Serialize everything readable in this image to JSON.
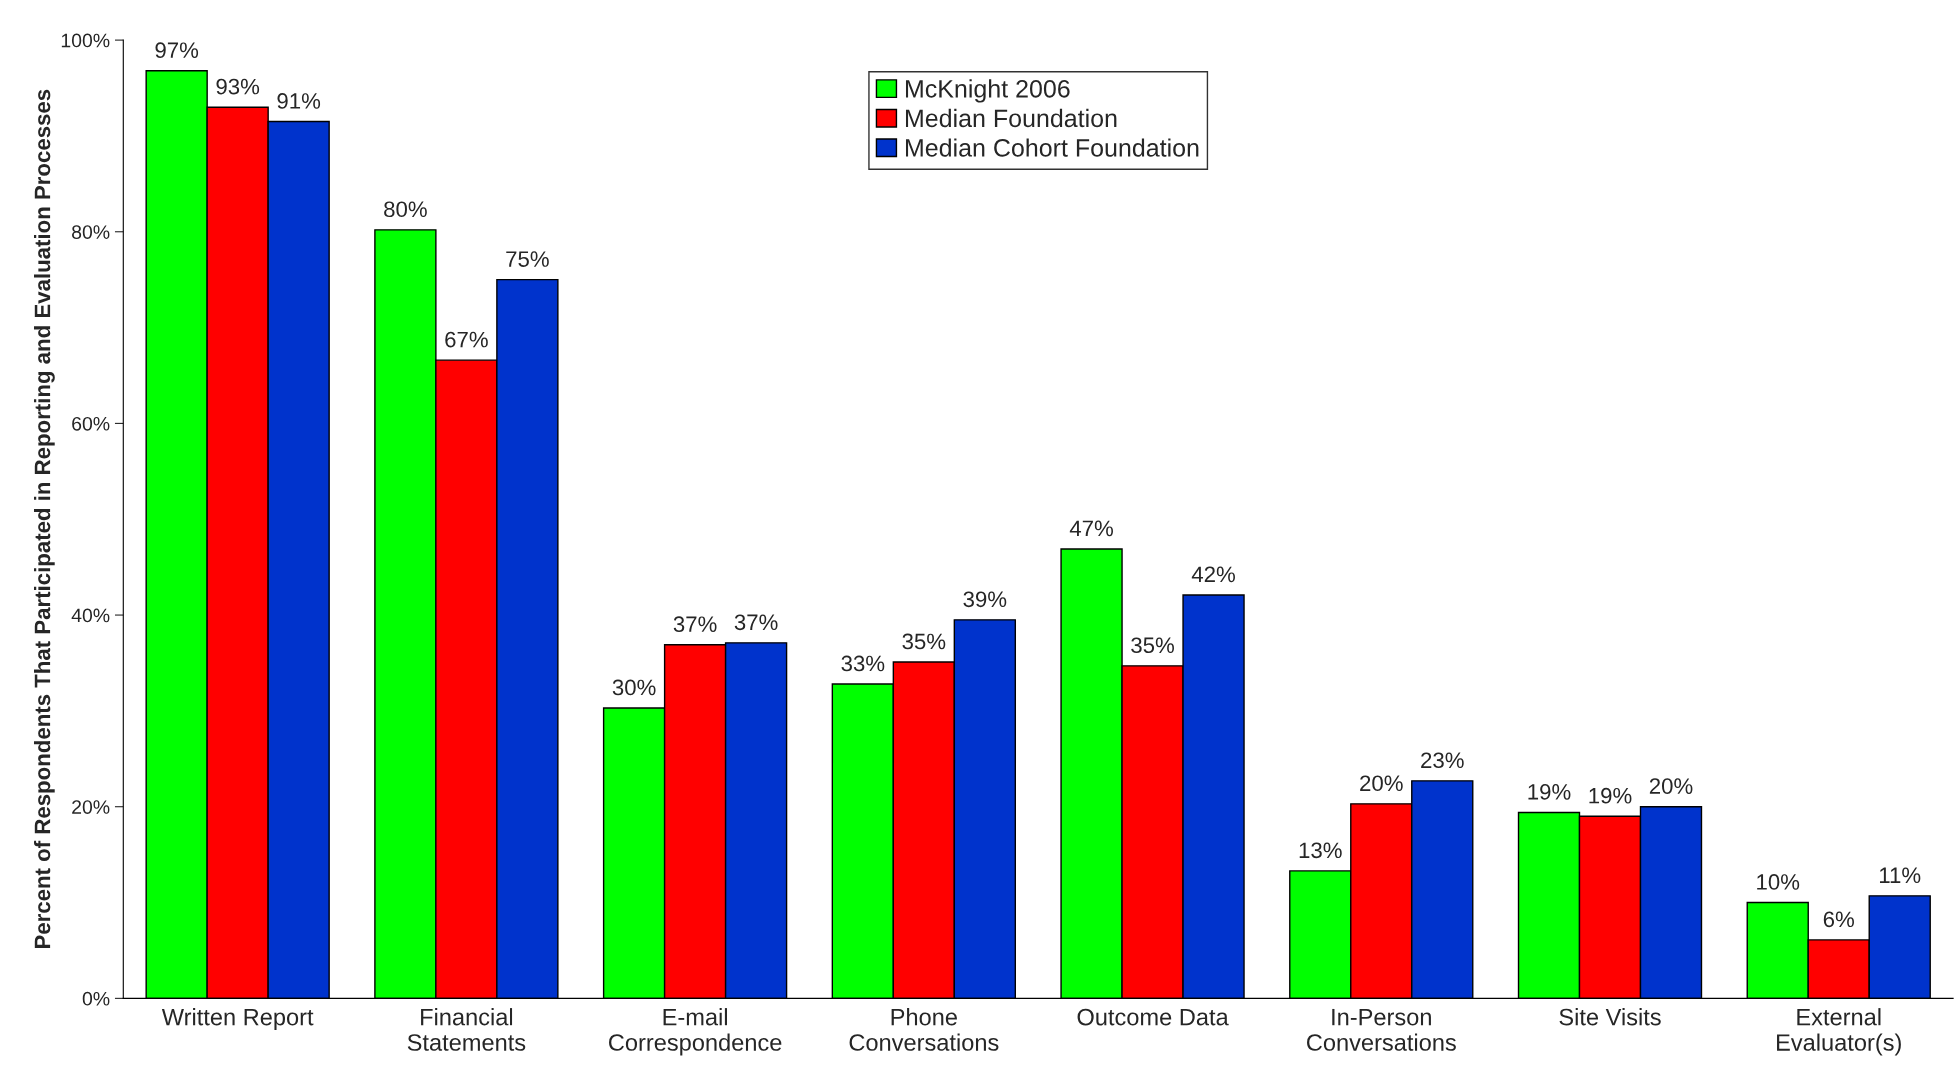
{
  "chart_data": {
    "type": "bar",
    "ylabel": "Percent of Respondents That Participated in Reporting and Evaluation Processes",
    "categories": [
      "Written Report",
      "Financial\nStatements",
      "E-mail\nCorrespondence",
      "Phone\nConversations",
      "Outcome Data",
      "In-Person\nConversations",
      "Site Visits",
      "External\nEvaluator(s)"
    ],
    "series": [
      {
        "name": "McKnight 2006",
        "color": "#00ff00",
        "values": [
          96.8,
          80.2,
          30.3,
          32.8,
          46.9,
          13.3,
          19.4,
          10
        ],
        "value_labels": [
          "97%",
          "80%",
          "30%",
          "33%",
          "47%",
          "13%",
          "19%",
          "10%"
        ]
      },
      {
        "name": "Median Foundation",
        "color": "#ff0000",
        "values": [
          93,
          66.6,
          36.9,
          35.1,
          34.7,
          20.3,
          19,
          6.1
        ],
        "value_labels": [
          "93%",
          "67%",
          "37%",
          "35%",
          "35%",
          "20%",
          "19%",
          "6%"
        ]
      },
      {
        "name": "Median Cohort Foundation",
        "color": "#0033cc",
        "values": [
          91.5,
          75,
          37.1,
          39.5,
          42.1,
          22.7,
          20,
          10.7
        ],
        "value_labels": [
          "91%",
          "75%",
          "37%",
          "39%",
          "42%",
          "23%",
          "20%",
          "11%"
        ]
      }
    ],
    "ylim": [
      0,
      100
    ],
    "yticks": [
      {
        "value": 0,
        "label": "0%"
      },
      {
        "value": 20,
        "label": "20%"
      },
      {
        "value": 40,
        "label": "40%"
      },
      {
        "value": 60,
        "label": "60%"
      },
      {
        "value": 80,
        "label": "80%"
      },
      {
        "value": 100,
        "label": "100%"
      }
    ],
    "grid": false,
    "legend": "top"
  }
}
